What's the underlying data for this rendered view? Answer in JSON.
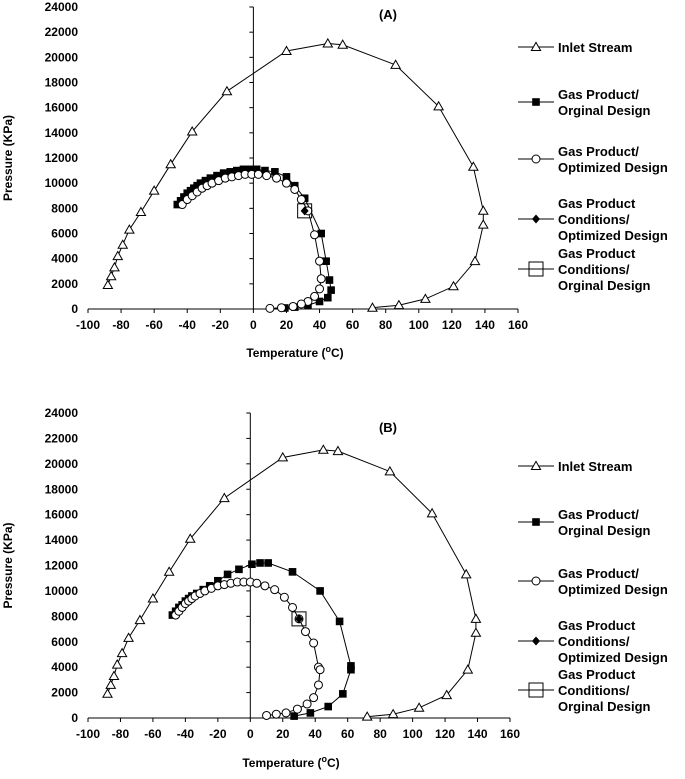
{
  "chart_data": [
    {
      "type": "line",
      "panel_label": "(A)",
      "xlabel": "Temperature (",
      "xlabel_sup": "o",
      "xlabel_end": "C)",
      "ylabel": "Pressure (KPa)",
      "xlim": [
        -100,
        160
      ],
      "ylim": [
        0,
        24000
      ],
      "xticks": [
        "-100",
        "-80",
        "-60",
        "-40",
        "-20",
        "0",
        "20",
        "40",
        "60",
        "80",
        "100",
        "120",
        "140",
        "160"
      ],
      "yticks": [
        "0",
        "2000",
        "4000",
        "6000",
        "8000",
        "10000",
        "12000",
        "14000",
        "16000",
        "18000",
        "20000",
        "22000",
        "24000"
      ],
      "series": [
        {
          "name": "Inlet Stream",
          "legend_lines": [
            "Inlet Stream"
          ],
          "marker": "triangle",
          "x": [
            -88,
            -86,
            -84,
            -82,
            -79,
            -75,
            -68,
            -60,
            -50,
            -37,
            -16,
            20,
            45,
            54,
            86,
            112,
            133,
            139,
            139,
            134,
            121,
            104,
            88,
            72
          ],
          "y": [
            1900,
            2600,
            3300,
            4200,
            5100,
            6300,
            7700,
            9400,
            11500,
            14100,
            17300,
            20500,
            21100,
            21000,
            19400,
            16100,
            11300,
            7800,
            6700,
            3800,
            1800,
            800,
            300,
            100
          ]
        },
        {
          "name": "Gas Product/ Orginal Design",
          "legend_lines": [
            "Gas Product/",
            "Orginal Design"
          ],
          "marker": "square-filled",
          "x": [
            -46,
            -44,
            -42,
            -40,
            -38,
            -36,
            -34,
            -32,
            -29,
            -26,
            -22,
            -18,
            -14,
            -10,
            -6,
            -2,
            2,
            7,
            13,
            20,
            25,
            31,
            41,
            44,
            46,
            47,
            45,
            40,
            33,
            25,
            19
          ],
          "y": [
            8300,
            8600,
            8900,
            9200,
            9400,
            9600,
            9800,
            10000,
            10200,
            10400,
            10600,
            10800,
            10900,
            11000,
            11100,
            11100,
            11100,
            11000,
            10900,
            10500,
            9800,
            8800,
            6000,
            3800,
            2300,
            1500,
            900,
            600,
            300,
            150,
            80
          ]
        },
        {
          "name": "Gas Product/ Optimized Design",
          "legend_lines": [
            "Gas Product/",
            "Optimized Design"
          ],
          "marker": "circle",
          "x": [
            -43,
            -40,
            -37,
            -34,
            -31,
            -28,
            -25,
            -21,
            -17,
            -13,
            -9,
            -5,
            -1,
            3,
            8,
            14,
            20,
            25,
            29,
            33,
            37,
            40,
            41,
            40,
            37,
            33,
            29,
            24,
            17,
            10
          ],
          "y": [
            8300,
            8700,
            9000,
            9300,
            9600,
            9800,
            10000,
            10200,
            10400,
            10500,
            10600,
            10700,
            10700,
            10700,
            10600,
            10400,
            10000,
            9500,
            8700,
            7800,
            5900,
            3800,
            2400,
            1600,
            1000,
            600,
            400,
            200,
            100,
            50
          ]
        },
        {
          "name": "Gas Product Conditions/ Optimized Design",
          "legend_lines": [
            "Gas Product",
            "Conditions/",
            "Optimized Design"
          ],
          "marker": "diamond-filled",
          "x": [
            31
          ],
          "y": [
            7800
          ]
        },
        {
          "name": "Gas Product Conditions/ Orginal Design",
          "legend_lines": [
            "Gas Product",
            "Conditions/",
            "Orginal Design"
          ],
          "marker": "square-open",
          "x": [
            31
          ],
          "y": [
            7800
          ]
        }
      ]
    },
    {
      "type": "line",
      "panel_label": "(B)",
      "xlabel": "Temperature (",
      "xlabel_sup": "o",
      "xlabel_end": "C)",
      "ylabel": "Pressure (KPa)",
      "xlim": [
        -100,
        160
      ],
      "ylim": [
        0,
        24000
      ],
      "xticks": [
        "-100",
        "-80",
        "-60",
        "-40",
        "-20",
        "0",
        "20",
        "40",
        "60",
        "80",
        "100",
        "120",
        "140",
        "160"
      ],
      "yticks": [
        "0",
        "2000",
        "4000",
        "6000",
        "8000",
        "10000",
        "12000",
        "14000",
        "16000",
        "18000",
        "20000",
        "22000",
        "24000"
      ],
      "series": [
        {
          "name": "Inlet Stream",
          "legend_lines": [
            "Inlet Stream"
          ],
          "marker": "triangle",
          "x": [
            -88,
            -86,
            -84,
            -82,
            -79,
            -75,
            -68,
            -60,
            -50,
            -37,
            -16,
            20,
            45,
            54,
            86,
            112,
            133,
            139,
            139,
            134,
            121,
            104,
            88,
            72
          ],
          "y": [
            1900,
            2600,
            3300,
            4200,
            5100,
            6300,
            7700,
            9400,
            11500,
            14100,
            17300,
            20500,
            21100,
            21000,
            19400,
            16100,
            11300,
            7800,
            6700,
            3800,
            1800,
            800,
            300,
            100
          ]
        },
        {
          "name": "Gas Product/ Orginal Design",
          "legend_lines": [
            "Gas Product/",
            "Orginal Design"
          ],
          "marker": "square-filled",
          "x": [
            -48,
            -46,
            -44,
            -42,
            -40,
            -38,
            -36,
            -33,
            -29,
            -25,
            -20,
            -14,
            -7,
            1,
            6,
            11,
            26,
            43,
            55,
            62,
            62,
            57,
            48,
            37,
            27
          ],
          "y": [
            8100,
            8400,
            8700,
            8900,
            9200,
            9400,
            9600,
            9800,
            10100,
            10400,
            10800,
            11300,
            11700,
            12100,
            12200,
            12200,
            11500,
            10000,
            7600,
            4100,
            3800,
            1900,
            900,
            400,
            150
          ]
        },
        {
          "name": "Gas Product/ Optimized Design",
          "legend_lines": [
            "Gas Product/",
            "Optimized Design"
          ],
          "marker": "circle",
          "x": [
            -46,
            -44,
            -42,
            -40,
            -38,
            -36,
            -34,
            -31,
            -28,
            -24,
            -20,
            -16,
            -12,
            -8,
            -4,
            0,
            4,
            9,
            15,
            21,
            26,
            30,
            34,
            39,
            42,
            43,
            42,
            39,
            35,
            29,
            22,
            16,
            10
          ],
          "y": [
            8100,
            8400,
            8700,
            9000,
            9200,
            9400,
            9600,
            9800,
            10000,
            10200,
            10400,
            10500,
            10600,
            10700,
            10700,
            10700,
            10600,
            10400,
            10100,
            9500,
            8700,
            7800,
            6800,
            5900,
            4000,
            3800,
            2600,
            1600,
            1100,
            700,
            400,
            300,
            200
          ]
        },
        {
          "name": "Gas Product Conditions/ Optimized Design",
          "legend_lines": [
            "Gas Product",
            "Conditions/",
            "Optimized Design"
          ],
          "marker": "diamond-filled",
          "x": [
            30
          ],
          "y": [
            7800
          ]
        },
        {
          "name": "Gas Product Conditions/ Orginal Design",
          "legend_lines": [
            "Gas Product",
            "Conditions/",
            "Orginal Design"
          ],
          "marker": "square-open",
          "x": [
            30
          ],
          "y": [
            7800
          ]
        }
      ]
    }
  ]
}
